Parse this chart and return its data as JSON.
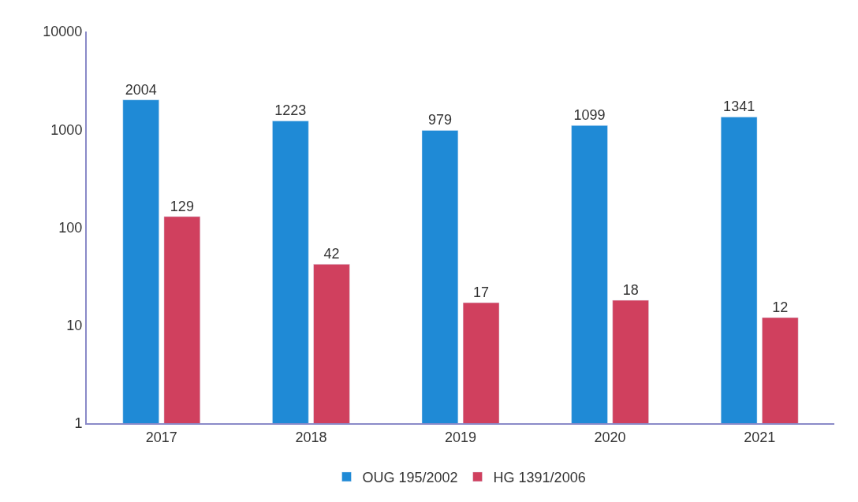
{
  "chart_data": {
    "type": "bar",
    "categories": [
      "2017",
      "2018",
      "2019",
      "2020",
      "2021"
    ],
    "series": [
      {
        "name": "OUG 195/2002",
        "color": "#1f8ad6",
        "values": [
          2004,
          1223,
          979,
          1099,
          1341
        ]
      },
      {
        "name": "HG 1391/2006",
        "color": "#d0405e",
        "values": [
          129,
          42,
          17,
          18,
          12
        ]
      }
    ],
    "log": "y",
    "ylim": [
      1,
      10000
    ],
    "yticks": [
      1,
      10,
      100,
      1000,
      10000
    ],
    "legend": "bottom",
    "data_labels": true
  }
}
